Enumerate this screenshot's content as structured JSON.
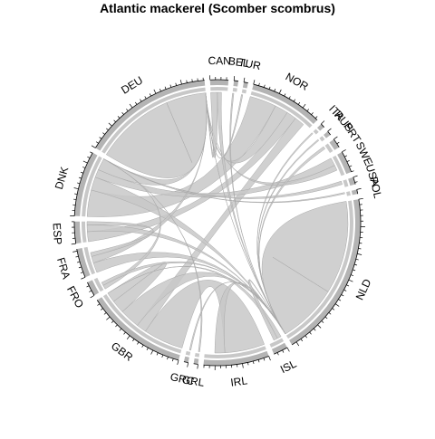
{
  "chart_data": {
    "type": "chord",
    "title": "Atlantic mackerel (Scomber scombrus)",
    "colors": {
      "band": "#c8c8c8",
      "band_edge": "#a9a9a9",
      "outer_ring": "#b4b4b4",
      "inner_ring": "#c8c8c8",
      "ticks": "#000000",
      "background": "#ffffff"
    },
    "sectors": [
      {
        "name": "CAN",
        "value": 2.5
      },
      {
        "name": "BEL",
        "value": 0.6
      },
      {
        "name": "TUR",
        "value": 0.6
      },
      {
        "name": "NOR",
        "value": 10
      },
      {
        "name": "ITA",
        "value": 0.6
      },
      {
        "name": "RUS",
        "value": 0.6
      },
      {
        "name": "PRT",
        "value": 1.3
      },
      {
        "name": "SWE",
        "value": 3
      },
      {
        "name": "USA",
        "value": 1
      },
      {
        "name": "POL",
        "value": 0.6
      },
      {
        "name": "NLD",
        "value": 23
      },
      {
        "name": "ISL",
        "value": 2
      },
      {
        "name": "IRL",
        "value": 9
      },
      {
        "name": "GRL",
        "value": 0.6
      },
      {
        "name": "GRC",
        "value": 0.6
      },
      {
        "name": "GBR",
        "value": 14
      },
      {
        "name": "FRO",
        "value": 2
      },
      {
        "name": "FRA",
        "value": 4
      },
      {
        "name": "ESP",
        "value": 3
      },
      {
        "name": "DNK",
        "value": 9
      },
      {
        "name": "DEU",
        "value": 18
      }
    ],
    "links": [
      {
        "from": "DEU",
        "to": "DEU",
        "value": 12
      },
      {
        "from": "NLD",
        "to": "NLD",
        "value": 14
      },
      {
        "from": "GBR",
        "to": "IRL",
        "value": 6
      },
      {
        "from": "NOR",
        "to": "DNK",
        "value": 4
      },
      {
        "from": "NOR",
        "to": "DEU",
        "value": 2
      },
      {
        "from": "NOR",
        "to": "ESP",
        "value": 1.5
      },
      {
        "from": "NOR",
        "to": "GBR",
        "value": 1.5
      },
      {
        "from": "DNK",
        "to": "NLD",
        "value": 2
      },
      {
        "from": "DNK",
        "to": "SWE",
        "value": 1.2
      },
      {
        "from": "DEU",
        "to": "DNK",
        "value": 2
      },
      {
        "from": "FRA",
        "to": "NLD",
        "value": 1.5
      },
      {
        "from": "FRA",
        "to": "DEU",
        "value": 1
      },
      {
        "from": "GBR",
        "to": "NLD",
        "value": 3
      },
      {
        "from": "GBR",
        "to": "GBR",
        "value": 2
      },
      {
        "from": "ESP",
        "to": "NLD",
        "value": 1
      },
      {
        "from": "SWE",
        "to": "DEU",
        "value": 0.8
      },
      {
        "from": "CAN",
        "to": "DEU",
        "value": 1
      },
      {
        "from": "CAN",
        "to": "NLD",
        "value": 0.6
      },
      {
        "from": "ISL",
        "to": "GBR",
        "value": 0.6
      },
      {
        "from": "ISL",
        "to": "NLD",
        "value": 0.6
      },
      {
        "from": "FRO",
        "to": "DNK",
        "value": 0.6
      },
      {
        "from": "FRO",
        "to": "NLD",
        "value": 0.5
      },
      {
        "from": "IRL",
        "to": "NLD",
        "value": 1.5
      },
      {
        "from": "USA",
        "to": "DNK",
        "value": 0.5
      },
      {
        "from": "PRT",
        "to": "NLD",
        "value": 0.4
      },
      {
        "from": "DEU",
        "to": "NLD",
        "value": 1.2
      },
      {
        "from": "BEL",
        "to": "NLD",
        "value": 0.2
      },
      {
        "from": "TUR",
        "to": "DEU",
        "value": 0.2
      },
      {
        "from": "ITA",
        "to": "NLD",
        "value": 0.2
      },
      {
        "from": "RUS",
        "to": "NLD",
        "value": 0.2
      },
      {
        "from": "POL",
        "to": "DNK",
        "value": 0.2
      },
      {
        "from": "GRL",
        "to": "DNK",
        "value": 0.2
      },
      {
        "from": "GRC",
        "to": "NLD",
        "value": 0.2
      },
      {
        "from": "ESP",
        "to": "FRA",
        "value": 0.6
      }
    ]
  }
}
